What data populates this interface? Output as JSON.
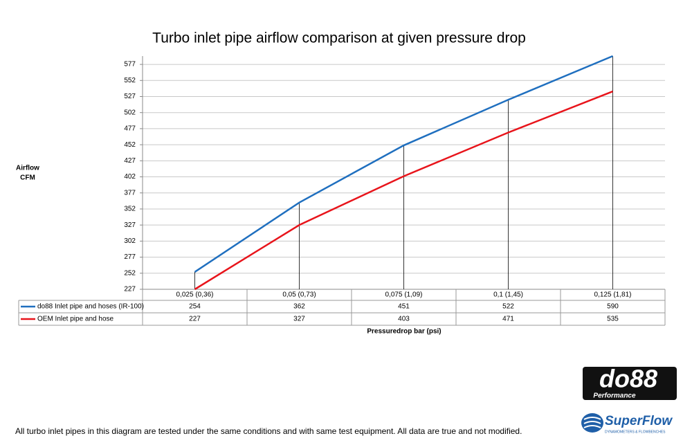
{
  "chart_data": {
    "type": "line",
    "title": "Turbo inlet pipe airflow comparison at given pressure drop",
    "ylabel": [
      "Airflow",
      "CFM"
    ],
    "xlabel": "Pressuredrop bar (psi)",
    "categories": [
      "0,025 (0,36)",
      "0,05 (0,73)",
      "0,075 (1,09)",
      "0,1 (1,45)",
      "0,125 (1,81)"
    ],
    "series": [
      {
        "name": "do88 Inlet pipe and hoses (IR-100)",
        "color": "#1f6fbf",
        "values": [
          254,
          362,
          451,
          522,
          590
        ]
      },
      {
        "name": "OEM Inlet pipe and hose",
        "color": "#e8141b",
        "values": [
          227,
          327,
          403,
          471,
          535
        ]
      }
    ],
    "ylim": [
      227,
      590
    ],
    "yticks": [
      227,
      252,
      277,
      302,
      327,
      352,
      377,
      402,
      427,
      452,
      477,
      502,
      527,
      552,
      577
    ],
    "grid": true,
    "drop_lines": true
  },
  "footer": "All turbo inlet pipes in this diagram are tested under the same conditions and with same test equipment. All data are true and not modified.",
  "logos": {
    "do88": "do88",
    "do88_sub": "Performance",
    "superflow": "SuperFlow",
    "superflow_sub": "DYNAMOMETERS & FLOWBENCHES"
  }
}
